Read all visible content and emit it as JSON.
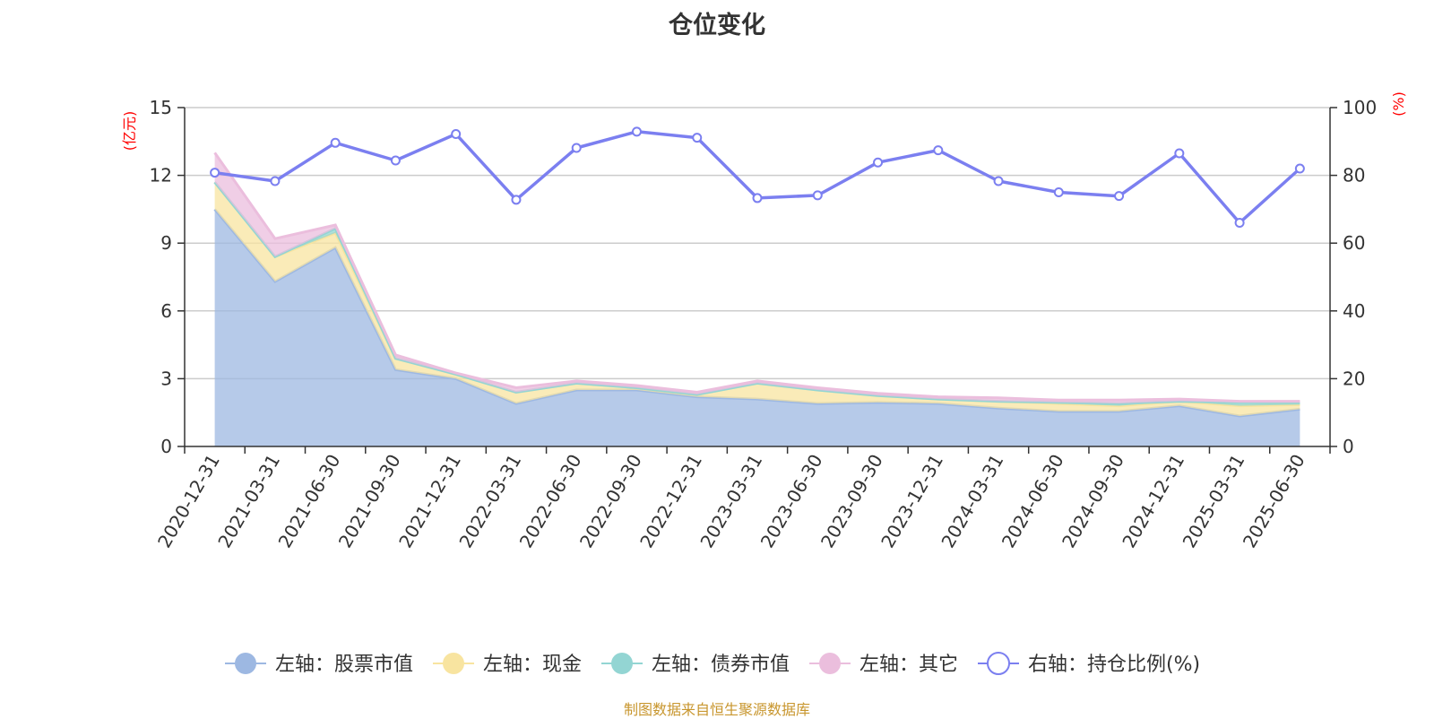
{
  "chart_data": {
    "type": "area",
    "title": "仓位变化",
    "left_axis_unit": "(亿元)",
    "right_axis_unit": "(%)",
    "categories": [
      "2020-12-31",
      "2021-03-31",
      "2021-06-30",
      "2021-09-30",
      "2021-12-31",
      "2022-03-31",
      "2022-06-30",
      "2022-09-30",
      "2022-12-31",
      "2023-03-31",
      "2023-06-30",
      "2023-09-30",
      "2023-12-31",
      "2024-03-31",
      "2024-06-30",
      "2024-09-30",
      "2024-12-31",
      "2025-03-31",
      "2025-06-30"
    ],
    "y_left": {
      "min": 0,
      "max": 15,
      "ticks": [
        0,
        3,
        6,
        9,
        12,
        15
      ]
    },
    "y_right": {
      "min": 0,
      "max": 100,
      "ticks": [
        0,
        20,
        40,
        60,
        80,
        100
      ]
    },
    "grid": true,
    "legend_position": "bottom",
    "stacked_series": [
      {
        "name": "左轴：股票市值",
        "color": "#9db8e2",
        "values": [
          10.5,
          7.3,
          8.8,
          3.4,
          3.0,
          1.9,
          2.5,
          2.5,
          2.2,
          2.1,
          1.9,
          1.95,
          1.9,
          1.7,
          1.55,
          1.55,
          1.8,
          1.35,
          1.65
        ]
      },
      {
        "name": "左轴：现金",
        "color": "#f8e4a0",
        "values": [
          1.2,
          1.1,
          0.65,
          0.5,
          0.2,
          0.5,
          0.3,
          0.1,
          0.1,
          0.7,
          0.6,
          0.3,
          0.2,
          0.3,
          0.35,
          0.25,
          0.2,
          0.45,
          0.2
        ]
      },
      {
        "name": "左轴：债券市值",
        "color": "#93d5d3",
        "values": [
          0,
          0,
          0.2,
          0,
          0,
          0,
          0,
          0,
          0,
          0,
          0,
          0,
          0,
          0,
          0.05,
          0.1,
          0,
          0.15,
          0.1
        ]
      },
      {
        "name": "左轴：其它",
        "color": "#ebbedd",
        "values": [
          1.3,
          0.8,
          0.15,
          0.15,
          0.05,
          0.2,
          0.1,
          0.1,
          0.1,
          0.1,
          0.1,
          0.1,
          0.1,
          0.15,
          0.1,
          0.15,
          0.1,
          0.05,
          0.05
        ]
      }
    ],
    "line_series": {
      "name": "右轴：持仓比例(%)",
      "color": "#7b7ff0",
      "values": [
        80.8,
        78.3,
        89.6,
        84.4,
        92.2,
        72.8,
        88.1,
        92.9,
        91.1,
        73.3,
        74.1,
        83.8,
        87.4,
        78.3,
        75.0,
        73.9,
        86.5,
        66.0,
        82.0
      ]
    }
  },
  "source_note": "制图数据来自恒生聚源数据库"
}
